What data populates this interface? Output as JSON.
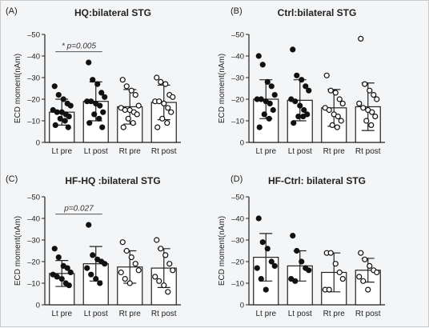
{
  "chart_data": [
    {
      "type": "bar",
      "label": "(A)",
      "title": "HQ:bilateral STG",
      "ylabel": "ECD moment(nAm)",
      "ylim": [
        0,
        -50
      ],
      "yticks": [
        0,
        -10,
        -20,
        -30,
        -40,
        -50
      ],
      "yticklabels": [
        "0",
        "–10",
        "–20",
        "–30",
        "–40",
        "–50"
      ],
      "categories": [
        "Lt pre",
        "Lt post",
        "Rt pre",
        "Rt post"
      ],
      "filled": [
        true,
        true,
        false,
        false
      ],
      "values": [
        -14,
        -19,
        -16.5,
        -18.5
      ],
      "errors": [
        6,
        9,
        8,
        8
      ],
      "points": [
        [
          -26,
          -22,
          -20,
          -18,
          -17,
          -15,
          -14,
          -14,
          -13,
          -12,
          -11,
          -10,
          -8,
          -7
        ],
        [
          -37,
          -29,
          -27,
          -23,
          -21,
          -19,
          -19,
          -18,
          -17,
          -14,
          -13,
          -11,
          -9,
          -7
        ],
        [
          -29,
          -26,
          -24,
          -22,
          -17,
          -16,
          -15,
          -15,
          -14,
          -13,
          -11,
          -9,
          -7
        ],
        [
          -30,
          -28,
          -27,
          -22,
          -21,
          -19,
          -19,
          -18,
          -16,
          -14,
          -11,
          -9,
          -7
        ]
      ],
      "annotation": {
        "text": "* p=0.005",
        "from": 0,
        "to": 1,
        "level": -42
      }
    },
    {
      "type": "bar",
      "label": "(B)",
      "title": "Ctrl:bilateral STG",
      "ylabel": "ECD moment(nAm)",
      "ylim": [
        0,
        -50
      ],
      "yticks": [
        0,
        -10,
        -20,
        -30,
        -40,
        -50
      ],
      "yticklabels": [
        "0",
        "–10",
        "–20",
        "–30",
        "–40",
        "–50"
      ],
      "categories": [
        "Lt pre",
        "Lt post",
        "Rt pre",
        "Rt post"
      ],
      "filled": [
        true,
        true,
        false,
        false
      ],
      "values": [
        -20,
        -19.5,
        -16,
        -16.5
      ],
      "errors": [
        9,
        9.5,
        8.5,
        11
      ],
      "points": [
        [
          -40,
          -36,
          -28,
          -26,
          -22,
          -20,
          -20,
          -19,
          -18,
          -15,
          -13,
          -11,
          -7
        ],
        [
          -43,
          -31,
          -29,
          -26,
          -24,
          -20,
          -19,
          -17,
          -15,
          -13,
          -12,
          -12,
          -9
        ],
        [
          -31,
          -24,
          -23,
          -20,
          -18,
          -16,
          -15,
          -13,
          -12,
          -10,
          -8,
          -7
        ],
        [
          -48,
          -27,
          -24,
          -22,
          -20,
          -18,
          -16,
          -15,
          -14,
          -12,
          -10,
          -8
        ]
      ]
    },
    {
      "type": "bar",
      "label": "(C)",
      "title": "HF-HQ :bilateral STG",
      "ylabel": "ECD moment(nAm)",
      "ylim": [
        0,
        -50
      ],
      "yticks": [
        0,
        -10,
        -20,
        -30,
        -40,
        -50
      ],
      "yticklabels": [
        "0",
        "–10",
        "–20",
        "–30",
        "–40",
        "–50"
      ],
      "categories": [
        "Lt pre",
        "Lt post",
        "Rt pre",
        "Rt post"
      ],
      "filled": [
        true,
        true,
        false,
        false
      ],
      "values": [
        -14.5,
        -19,
        -17.5,
        -17
      ],
      "errors": [
        6,
        8,
        7.5,
        9
      ],
      "points": [
        [
          -26,
          -22,
          -18,
          -17,
          -15,
          -14,
          -13,
          -12,
          -10,
          -9
        ],
        [
          -37,
          -23,
          -21,
          -20,
          -19,
          -17,
          -14,
          -12,
          -10
        ],
        [
          -29,
          -25,
          -22,
          -19,
          -16,
          -15,
          -12,
          -10
        ],
        [
          -30,
          -26,
          -23,
          -19,
          -16,
          -13,
          -11,
          -9,
          -6
        ]
      ],
      "annotation": {
        "text": "p=0.027",
        "from": 0,
        "to": 1,
        "level": -42
      }
    },
    {
      "type": "bar",
      "label": "(D)",
      "title": "HF-Ctrl: bilateral STG",
      "ylabel": "ECD moment(nAm)",
      "ylim": [
        0,
        -50
      ],
      "yticks": [
        0,
        -10,
        -20,
        -30,
        -40,
        -50
      ],
      "yticklabels": [
        "0",
        "–10",
        "–20",
        "–30",
        "–40",
        "–50"
      ],
      "categories": [
        "Lt pre",
        "Lt post",
        "Rt pre",
        "Rt post"
      ],
      "filled": [
        true,
        true,
        false,
        false
      ],
      "values": [
        -22,
        -18,
        -15,
        -16
      ],
      "errors": [
        11,
        7,
        9,
        5.5
      ],
      "points": [
        [
          -40,
          -29,
          -26,
          -20,
          -18,
          -17,
          -12,
          -7
        ],
        [
          -32,
          -25,
          -20,
          -17,
          -16,
          -12,
          -11
        ],
        [
          -24,
          -24,
          -19,
          -15,
          -12,
          -7,
          -7
        ],
        [
          -24,
          -21,
          -18,
          -16,
          -15,
          -13,
          -11,
          -7
        ]
      ]
    }
  ]
}
